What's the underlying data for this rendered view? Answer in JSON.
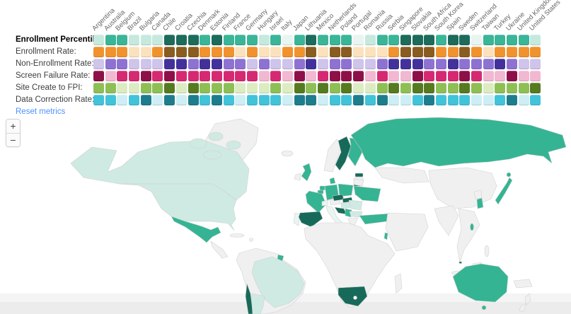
{
  "header": {
    "countries": [
      "Argentina",
      "Australia",
      "Belgium",
      "Brazil",
      "Bulgaria",
      "Canada",
      "Chile",
      "Croatia",
      "Czechia",
      "Denmark",
      "Estonia",
      "Finland",
      "France",
      "Germany",
      "Hungary",
      "Israel",
      "Italy",
      "Japan",
      "Lithuania",
      "Mexico",
      "Netherlands",
      "Poland",
      "Portugal",
      "Romania",
      "Russia",
      "Serbia",
      "Singapore",
      "Slovakia",
      "South Africa",
      "South Korea",
      "Spain",
      "Sweden",
      "Switzerland",
      "Taiwan",
      "Turkey",
      "Ukraine",
      "United Kingdom",
      "United States"
    ],
    "metrics": [
      {
        "id": "enrollment-percentile",
        "label": "Enrollment Percentile:",
        "bold": true,
        "palette": "teal",
        "values": [
          "p2",
          "m",
          "m",
          "p2",
          "p2",
          "p2",
          "d",
          "d",
          "d",
          "m",
          "d",
          "m",
          "m",
          "m",
          "p2",
          "m",
          "p1",
          "m",
          "d",
          "m",
          "m",
          "m",
          "p1",
          "p2",
          "m",
          "m",
          "d",
          "d",
          "d",
          "m",
          "d",
          "d",
          "p1",
          "m",
          "m",
          "m",
          "m",
          "p2"
        ]
      },
      {
        "id": "enrollment-rate",
        "label": "Enrollment Rate:",
        "bold": false,
        "palette": "orange",
        "values": [
          "o",
          "o",
          "o",
          "c",
          "c",
          "o",
          "b",
          "b",
          "b",
          "o",
          "o",
          "o",
          "c",
          "o",
          "c",
          "c",
          "o",
          "o",
          "b",
          "c",
          "b",
          "b",
          "c",
          "c",
          "c",
          "o",
          "b",
          "b",
          "b",
          "o",
          "o",
          "b",
          "o",
          "c",
          "o",
          "o",
          "o",
          "o"
        ]
      },
      {
        "id": "non-enrollment-rate",
        "label": "Non-Enrollment Rate:",
        "bold": false,
        "palette": "purple",
        "values": [
          "p",
          "m",
          "m",
          "p",
          "p",
          "p",
          "d",
          "d",
          "m",
          "d",
          "d",
          "m",
          "m",
          "p",
          "m",
          "p",
          "p",
          "m",
          "d",
          "p",
          "m",
          "m",
          "p",
          "p",
          "m",
          "d",
          "d",
          "d",
          "m",
          "m",
          "d",
          "m",
          "m",
          "m",
          "d",
          "m",
          "p",
          "p"
        ]
      },
      {
        "id": "screen-failure-rate",
        "label": "Screen Failure Rate:",
        "bold": false,
        "palette": "pink",
        "values": [
          "d",
          "l",
          "m",
          "m",
          "d",
          "m",
          "d",
          "m",
          "m",
          "m",
          "m",
          "m",
          "m",
          "m",
          "l",
          "m",
          "l",
          "d",
          "l",
          "m",
          "d",
          "d",
          "d",
          "l",
          "m",
          "l",
          "l",
          "d",
          "m",
          "m",
          "m",
          "d",
          "m",
          "l",
          "l",
          "d",
          "l",
          "l"
        ]
      },
      {
        "id": "site-create-to-fpi",
        "label": "Site Create to FPI:",
        "bold": false,
        "palette": "green",
        "values": [
          "m",
          "m",
          "p",
          "p",
          "m",
          "m",
          "d",
          "p",
          "d",
          "m",
          "m",
          "m",
          "p",
          "p",
          "p",
          "m",
          "p",
          "d",
          "m",
          "d",
          "m",
          "d",
          "p",
          "p",
          "m",
          "d",
          "m",
          "d",
          "d",
          "m",
          "m",
          "d",
          "m",
          "p",
          "m",
          "m",
          "m",
          "d"
        ]
      },
      {
        "id": "data-correction-rate",
        "label": "Data Correction Rate:",
        "bold": false,
        "palette": "cyan",
        "values": [
          "m",
          "m",
          "p",
          "m",
          "d",
          "p",
          "d",
          "p",
          "d",
          "m",
          "d",
          "m",
          "p",
          "m",
          "m",
          "m",
          "p",
          "d",
          "d",
          "p",
          "m",
          "m",
          "d",
          "m",
          "d",
          "p",
          "p",
          "m",
          "d",
          "m",
          "m",
          "m",
          "p",
          "p",
          "m",
          "d",
          "p",
          "m"
        ]
      }
    ],
    "reset_link": "Reset metrics"
  },
  "palettes": {
    "teal": {
      "p1": "#e8f5f0",
      "p2": "#c6e9de",
      "m": "#3ab597",
      "d": "#1c6b5b"
    },
    "orange": {
      "c": "#fbe2bd",
      "o": "#f0932e",
      "b": "#8a5c20"
    },
    "purple": {
      "p": "#cfc4ea",
      "m": "#8d72d2",
      "d": "#43319b"
    },
    "pink": {
      "l": "#f2b8d1",
      "m": "#d52a72",
      "d": "#8e1048"
    },
    "green": {
      "p": "#dcecc2",
      "m": "#8ebf55",
      "d": "#567a1f"
    },
    "cyan": {
      "p": "#cdeef4",
      "m": "#41c3d9",
      "d": "#1e7d8d"
    }
  },
  "map": {
    "zoom_in": "+",
    "zoom_out": "−",
    "palette": {
      "p1": "#eaf4f0",
      "p2": "#cfeae2",
      "m": "#35b493",
      "d": "#176a59",
      "nodata": "#f0f0f0"
    },
    "shades": {
      "Argentina": "p2",
      "Australia": "m",
      "Belgium": "m",
      "Brazil": "p2",
      "Bulgaria": "p2",
      "Canada": "p2",
      "Chile": "d",
      "Croatia": "d",
      "Czechia": "d",
      "Denmark": "m",
      "Estonia": "d",
      "Finland": "m",
      "France": "m",
      "Germany": "m",
      "Hungary": "p2",
      "Israel": "m",
      "Italy": "p1",
      "Japan": "m",
      "Lithuania": "d",
      "Mexico": "m",
      "Netherlands": "m",
      "Poland": "m",
      "Portugal": "p1",
      "Romania": "p2",
      "Russia": "m",
      "Serbia": "m",
      "Singapore": "d",
      "Slovakia": "d",
      "South Africa": "d",
      "South Korea": "m",
      "Spain": "d",
      "Sweden": "d",
      "Switzerland": "p1",
      "Taiwan": "m",
      "Turkey": "m",
      "Ukraine": "m",
      "United Kingdom": "m",
      "United States": "p2"
    }
  }
}
